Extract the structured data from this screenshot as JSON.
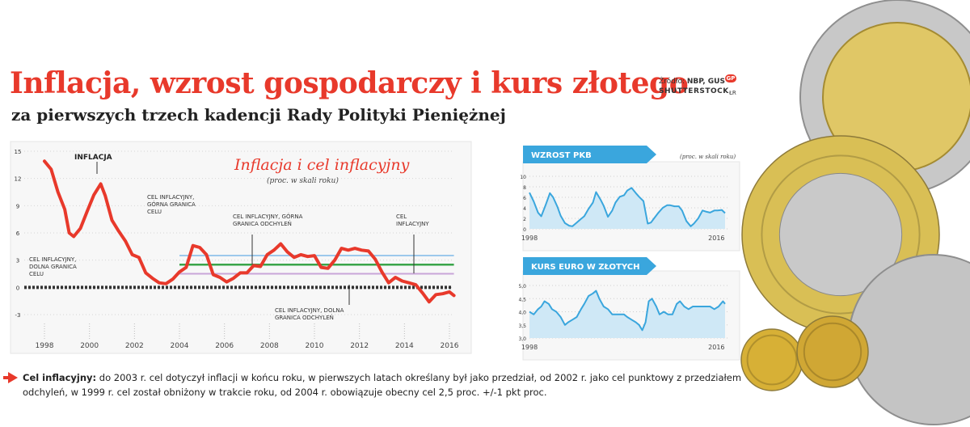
{
  "header": {
    "title": "Inflacja, wzrost gospodarczy i kurs złotego",
    "subtitle": "za pierwszych trzech kadencji Rady Polityki Pieniężnej",
    "source_label": "Źródło:",
    "source_value": "NBP, GUS",
    "badge": "GP",
    "credit": "SHUTTERSTOCK",
    "credit_initials": "ŁR"
  },
  "footnote": {
    "label": "Cel inflacyjny:",
    "text": " do 2003 r. cel dotyczył inflacji w końcu roku, w pierwszych latach określany był jako przedział, od 2002 r. jako cel punktowy z przedziałem odchyleń, w 1999 r. cel został obniżony w trakcie roku, od 2004 r. obowiązuje obecny cel 2,5 proc. +/-1 pkt proc."
  },
  "colors": {
    "accent": "#e8392b",
    "series_blue": "#3aa6dd",
    "target_green": "#3aa54a",
    "band_upper": "#9cc9ec",
    "band_lower": "#c9a6d8"
  },
  "chart_data": [
    {
      "type": "line",
      "title": "Inflacja i cel inflacyjny",
      "unit": "(proc. w skali roku)",
      "x_ticks": [
        "1998",
        "2000",
        "2002",
        "2004",
        "2006",
        "2008",
        "2010",
        "2012",
        "2014",
        "2016"
      ],
      "y_ticks": [
        "-3",
        "0",
        "3",
        "6",
        "9",
        "12",
        "15"
      ],
      "xlim": [
        1998,
        2016.5
      ],
      "ylim": [
        -3,
        15
      ],
      "grid": false,
      "annotations": {
        "inflation": "INFLACJA",
        "upper_2002": "CEL INFLACYJNY, GÓRNA GRANICA CELU",
        "lower_2002": "CEL INFLACYJNY, DOLNA GRANICA CELU",
        "upper_band": "CEL INFLACYJNY, GÓRNA GRANICA ODCHYLEŃ",
        "target": "CEL INFLACYJNY",
        "lower_band": "CEL INFLACYJNY, DOLNA GRANICA ODCHYLEŃ"
      },
      "series": [
        {
          "name": "INFLACJA",
          "points": [
            [
              1998.0,
              13.9
            ],
            [
              1998.3,
              13.0
            ],
            [
              1998.6,
              10.5
            ],
            [
              1998.9,
              8.6
            ],
            [
              1999.1,
              6.0
            ],
            [
              1999.3,
              5.6
            ],
            [
              1999.6,
              6.5
            ],
            [
              1999.9,
              8.4
            ],
            [
              2000.2,
              10.2
            ],
            [
              2000.5,
              11.4
            ],
            [
              2000.7,
              10.1
            ],
            [
              2001.0,
              7.4
            ],
            [
              2001.3,
              6.2
            ],
            [
              2001.6,
              5.1
            ],
            [
              2001.9,
              3.6
            ],
            [
              2002.2,
              3.3
            ],
            [
              2002.5,
              1.6
            ],
            [
              2002.8,
              1.0
            ],
            [
              2003.1,
              0.5
            ],
            [
              2003.4,
              0.4
            ],
            [
              2003.7,
              0.9
            ],
            [
              2004.0,
              1.7
            ],
            [
              2004.3,
              2.2
            ],
            [
              2004.6,
              4.6
            ],
            [
              2004.9,
              4.4
            ],
            [
              2005.2,
              3.6
            ],
            [
              2005.5,
              1.4
            ],
            [
              2005.8,
              1.1
            ],
            [
              2006.1,
              0.6
            ],
            [
              2006.4,
              1.0
            ],
            [
              2006.7,
              1.6
            ],
            [
              2007.0,
              1.6
            ],
            [
              2007.3,
              2.4
            ],
            [
              2007.6,
              2.3
            ],
            [
              2007.9,
              3.6
            ],
            [
              2008.2,
              4.1
            ],
            [
              2008.5,
              4.8
            ],
            [
              2008.8,
              3.9
            ],
            [
              2009.1,
              3.3
            ],
            [
              2009.4,
              3.6
            ],
            [
              2009.7,
              3.4
            ],
            [
              2010.0,
              3.5
            ],
            [
              2010.3,
              2.2
            ],
            [
              2010.6,
              2.1
            ],
            [
              2010.9,
              3.0
            ],
            [
              2011.2,
              4.3
            ],
            [
              2011.5,
              4.1
            ],
            [
              2011.8,
              4.3
            ],
            [
              2012.1,
              4.1
            ],
            [
              2012.4,
              4.0
            ],
            [
              2012.7,
              3.1
            ],
            [
              2013.0,
              1.7
            ],
            [
              2013.3,
              0.5
            ],
            [
              2013.6,
              1.1
            ],
            [
              2013.9,
              0.7
            ],
            [
              2014.2,
              0.5
            ],
            [
              2014.5,
              0.3
            ],
            [
              2014.8,
              -0.6
            ],
            [
              2015.1,
              -1.6
            ],
            [
              2015.4,
              -0.8
            ],
            [
              2015.7,
              -0.7
            ],
            [
              2016.0,
              -0.5
            ],
            [
              2016.2,
              -0.9
            ]
          ]
        },
        {
          "name": "CEL INFLACYJNY, GÓRNA GRANICA ODCHYLEŃ",
          "points": [
            [
              2004.0,
              3.5
            ],
            [
              2016.2,
              3.5
            ]
          ]
        },
        {
          "name": "CEL INFLACYJNY",
          "points": [
            [
              2004.0,
              2.5
            ],
            [
              2016.2,
              2.5
            ]
          ]
        },
        {
          "name": "CEL INFLACYJNY, DOLNA GRANICA ODCHYLEŃ",
          "points": [
            [
              2004.0,
              1.5
            ],
            [
              2016.2,
              1.5
            ]
          ]
        }
      ]
    },
    {
      "type": "area",
      "title": "Wzrost PKB",
      "unit": "(proc. w skali roku)",
      "x_ticks": [
        "1998",
        "2016"
      ],
      "y_ticks": [
        "0",
        "2",
        "4",
        "6",
        "8",
        "10"
      ],
      "xlim": [
        1998,
        2016.5
      ],
      "ylim": [
        0,
        10
      ],
      "values_x": [
        1998.0,
        1998.4,
        1998.8,
        1999.1,
        1999.5,
        1999.9,
        2000.2,
        2000.6,
        2000.9,
        2001.3,
        2001.7,
        2002.0,
        2002.4,
        2002.8,
        2003.1,
        2003.5,
        2003.9,
        2004.2,
        2004.6,
        2004.9,
        2005.3,
        2005.7,
        2006.0,
        2006.4,
        2006.8,
        2007.1,
        2007.5,
        2007.9,
        2008.2,
        2008.6,
        2009.0,
        2009.3,
        2009.7,
        2010.0,
        2010.4,
        2010.8,
        2011.1,
        2011.5,
        2011.9,
        2012.2,
        2012.6,
        2013.0,
        2013.3,
        2013.7,
        2014.1,
        2014.4,
        2014.8,
        2015.2,
        2015.5,
        2015.9,
        2016.2
      ],
      "values_y": [
        6.9,
        5.2,
        3.1,
        2.4,
        4.5,
        6.8,
        6.0,
        4.2,
        2.5,
        1.1,
        0.6,
        0.5,
        1.2,
        1.9,
        2.4,
        3.8,
        5.0,
        7.0,
        5.6,
        4.4,
        2.3,
        3.5,
        5.0,
        6.1,
        6.4,
        7.3,
        7.8,
        6.8,
        6.1,
        5.3,
        1.0,
        1.2,
        2.3,
        3.1,
        4.0,
        4.5,
        4.5,
        4.3,
        4.3,
        3.5,
        1.5,
        0.5,
        1.0,
        2.0,
        3.5,
        3.3,
        3.1,
        3.5,
        3.5,
        3.6,
        3.0
      ]
    },
    {
      "type": "area",
      "title": "Kurs euro w złotych",
      "x_ticks": [
        "1998",
        "2016"
      ],
      "y_ticks": [
        "3,0",
        "3,5",
        "4,0",
        "4,5",
        "5,0"
      ],
      "xlim": [
        1998,
        2016.5
      ],
      "ylim": [
        3.0,
        5.0
      ],
      "values_x": [
        1998.0,
        1998.4,
        1998.8,
        1999.1,
        1999.4,
        1999.8,
        2000.1,
        2000.5,
        2000.9,
        2001.3,
        2001.6,
        2002.0,
        2002.4,
        2002.8,
        2003.1,
        2003.5,
        2003.9,
        2004.2,
        2004.5,
        2004.9,
        2005.3,
        2005.7,
        2006.0,
        2006.4,
        2006.8,
        2007.1,
        2007.5,
        2007.9,
        2008.2,
        2008.5,
        2008.8,
        2009.1,
        2009.4,
        2009.8,
        2010.1,
        2010.5,
        2010.9,
        2011.3,
        2011.7,
        2012.0,
        2012.4,
        2012.8,
        2013.2,
        2013.6,
        2014.0,
        2014.4,
        2014.8,
        2015.2,
        2015.6,
        2016.0,
        2016.2
      ],
      "values_y": [
        4.0,
        3.9,
        4.1,
        4.2,
        4.4,
        4.3,
        4.1,
        4.0,
        3.8,
        3.5,
        3.6,
        3.7,
        3.8,
        4.1,
        4.3,
        4.6,
        4.7,
        4.8,
        4.5,
        4.2,
        4.1,
        3.9,
        3.9,
        3.9,
        3.9,
        3.8,
        3.7,
        3.6,
        3.5,
        3.3,
        3.6,
        4.4,
        4.5,
        4.2,
        3.9,
        4.0,
        3.9,
        3.9,
        4.3,
        4.4,
        4.2,
        4.1,
        4.2,
        4.2,
        4.2,
        4.2,
        4.2,
        4.1,
        4.2,
        4.4,
        4.3
      ]
    }
  ]
}
